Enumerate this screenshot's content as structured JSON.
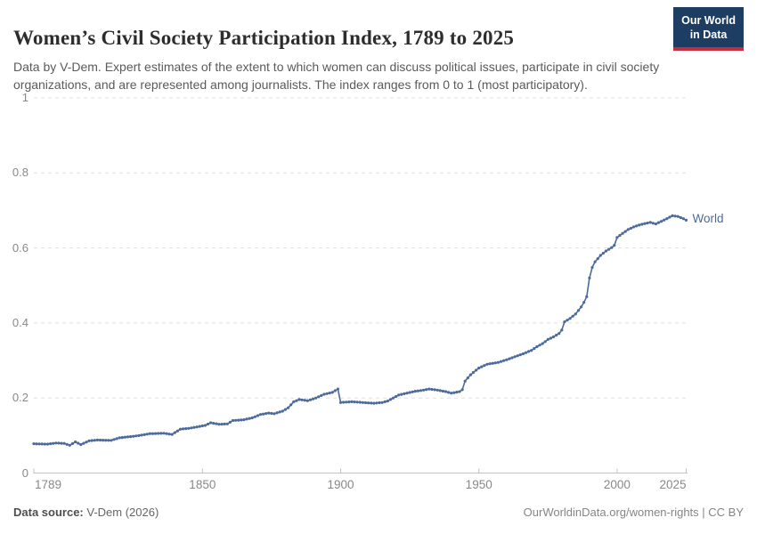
{
  "header": {
    "title": "Women’s Civil Society Participation Index, 1789 to 2025",
    "logo": {
      "line1": "Our World",
      "line2": "in Data"
    }
  },
  "subtitle": "Data by V-Dem. Expert estimates of the extent to which women can discuss political issues, participate in civil society organizations, and are represented among journalists. The index ranges from 0 to 1 (most participatory).",
  "colors": {
    "accent_blue": "#4C6A9C",
    "logo_background": "#1d3d63",
    "logo_bar": "#c62d3e",
    "gridline": "#e0e0e0",
    "axis": "#c2c2c2",
    "tick_text": "#888888"
  },
  "chart_data": {
    "type": "line",
    "title": "Women's Civil Society Participation Index, 1789 to 2025",
    "xlabel": "",
    "ylabel": "",
    "xlim": [
      1789,
      2025
    ],
    "ylim": [
      0,
      1
    ],
    "x_ticks": [
      1789,
      1850,
      1900,
      1950,
      2000,
      2025
    ],
    "y_ticks": [
      0,
      0.2,
      0.4,
      0.6,
      0.8,
      1
    ],
    "grid": true,
    "legend_position": "end-of-line",
    "series": [
      {
        "name": "World",
        "color": "#4C6A9C",
        "points": [
          [
            1789,
            0.078
          ],
          [
            1794,
            0.077
          ],
          [
            1797,
            0.08
          ],
          [
            1800,
            0.079
          ],
          [
            1802,
            0.074
          ],
          [
            1804,
            0.083
          ],
          [
            1806,
            0.076
          ],
          [
            1809,
            0.086
          ],
          [
            1812,
            0.088
          ],
          [
            1817,
            0.087
          ],
          [
            1820,
            0.094
          ],
          [
            1824,
            0.097
          ],
          [
            1828,
            0.101
          ],
          [
            1831,
            0.105
          ],
          [
            1836,
            0.106
          ],
          [
            1839,
            0.103
          ],
          [
            1842,
            0.117
          ],
          [
            1845,
            0.119
          ],
          [
            1848,
            0.123
          ],
          [
            1851,
            0.127
          ],
          [
            1853,
            0.134
          ],
          [
            1856,
            0.13
          ],
          [
            1859,
            0.131
          ],
          [
            1861,
            0.14
          ],
          [
            1865,
            0.142
          ],
          [
            1868,
            0.147
          ],
          [
            1871,
            0.156
          ],
          [
            1874,
            0.16
          ],
          [
            1876,
            0.158
          ],
          [
            1879,
            0.165
          ],
          [
            1881,
            0.174
          ],
          [
            1883,
            0.19
          ],
          [
            1885,
            0.196
          ],
          [
            1888,
            0.193
          ],
          [
            1891,
            0.2
          ],
          [
            1894,
            0.21
          ],
          [
            1897,
            0.215
          ],
          [
            1899,
            0.224
          ],
          [
            1900,
            0.188
          ],
          [
            1904,
            0.19
          ],
          [
            1908,
            0.188
          ],
          [
            1912,
            0.186
          ],
          [
            1915,
            0.188
          ],
          [
            1917,
            0.192
          ],
          [
            1919,
            0.2
          ],
          [
            1921,
            0.208
          ],
          [
            1924,
            0.213
          ],
          [
            1927,
            0.218
          ],
          [
            1930,
            0.221
          ],
          [
            1932,
            0.224
          ],
          [
            1935,
            0.221
          ],
          [
            1938,
            0.217
          ],
          [
            1940,
            0.213
          ],
          [
            1943,
            0.217
          ],
          [
            1944,
            0.222
          ],
          [
            1945,
            0.245
          ],
          [
            1947,
            0.262
          ],
          [
            1950,
            0.28
          ],
          [
            1953,
            0.29
          ],
          [
            1957,
            0.295
          ],
          [
            1960,
            0.302
          ],
          [
            1963,
            0.31
          ],
          [
            1966,
            0.318
          ],
          [
            1969,
            0.327
          ],
          [
            1971,
            0.337
          ],
          [
            1973,
            0.345
          ],
          [
            1975,
            0.356
          ],
          [
            1977,
            0.363
          ],
          [
            1979,
            0.372
          ],
          [
            1980,
            0.381
          ],
          [
            1981,
            0.403
          ],
          [
            1983,
            0.412
          ],
          [
            1985,
            0.424
          ],
          [
            1987,
            0.443
          ],
          [
            1988,
            0.455
          ],
          [
            1989,
            0.47
          ],
          [
            1990,
            0.52
          ],
          [
            1991,
            0.548
          ],
          [
            1992,
            0.563
          ],
          [
            1994,
            0.58
          ],
          [
            1996,
            0.592
          ],
          [
            1998,
            0.601
          ],
          [
            1999,
            0.607
          ],
          [
            2000,
            0.628
          ],
          [
            2002,
            0.639
          ],
          [
            2004,
            0.649
          ],
          [
            2006,
            0.656
          ],
          [
            2008,
            0.661
          ],
          [
            2010,
            0.665
          ],
          [
            2012,
            0.668
          ],
          [
            2014,
            0.664
          ],
          [
            2016,
            0.671
          ],
          [
            2018,
            0.678
          ],
          [
            2020,
            0.686
          ],
          [
            2022,
            0.684
          ],
          [
            2024,
            0.678
          ],
          [
            2025,
            0.674
          ]
        ]
      }
    ]
  },
  "footer": {
    "source_label": "Data source:",
    "source_value": "V-Dem (2026)",
    "credit": "OurWorldinData.org/women-rights | CC BY"
  }
}
